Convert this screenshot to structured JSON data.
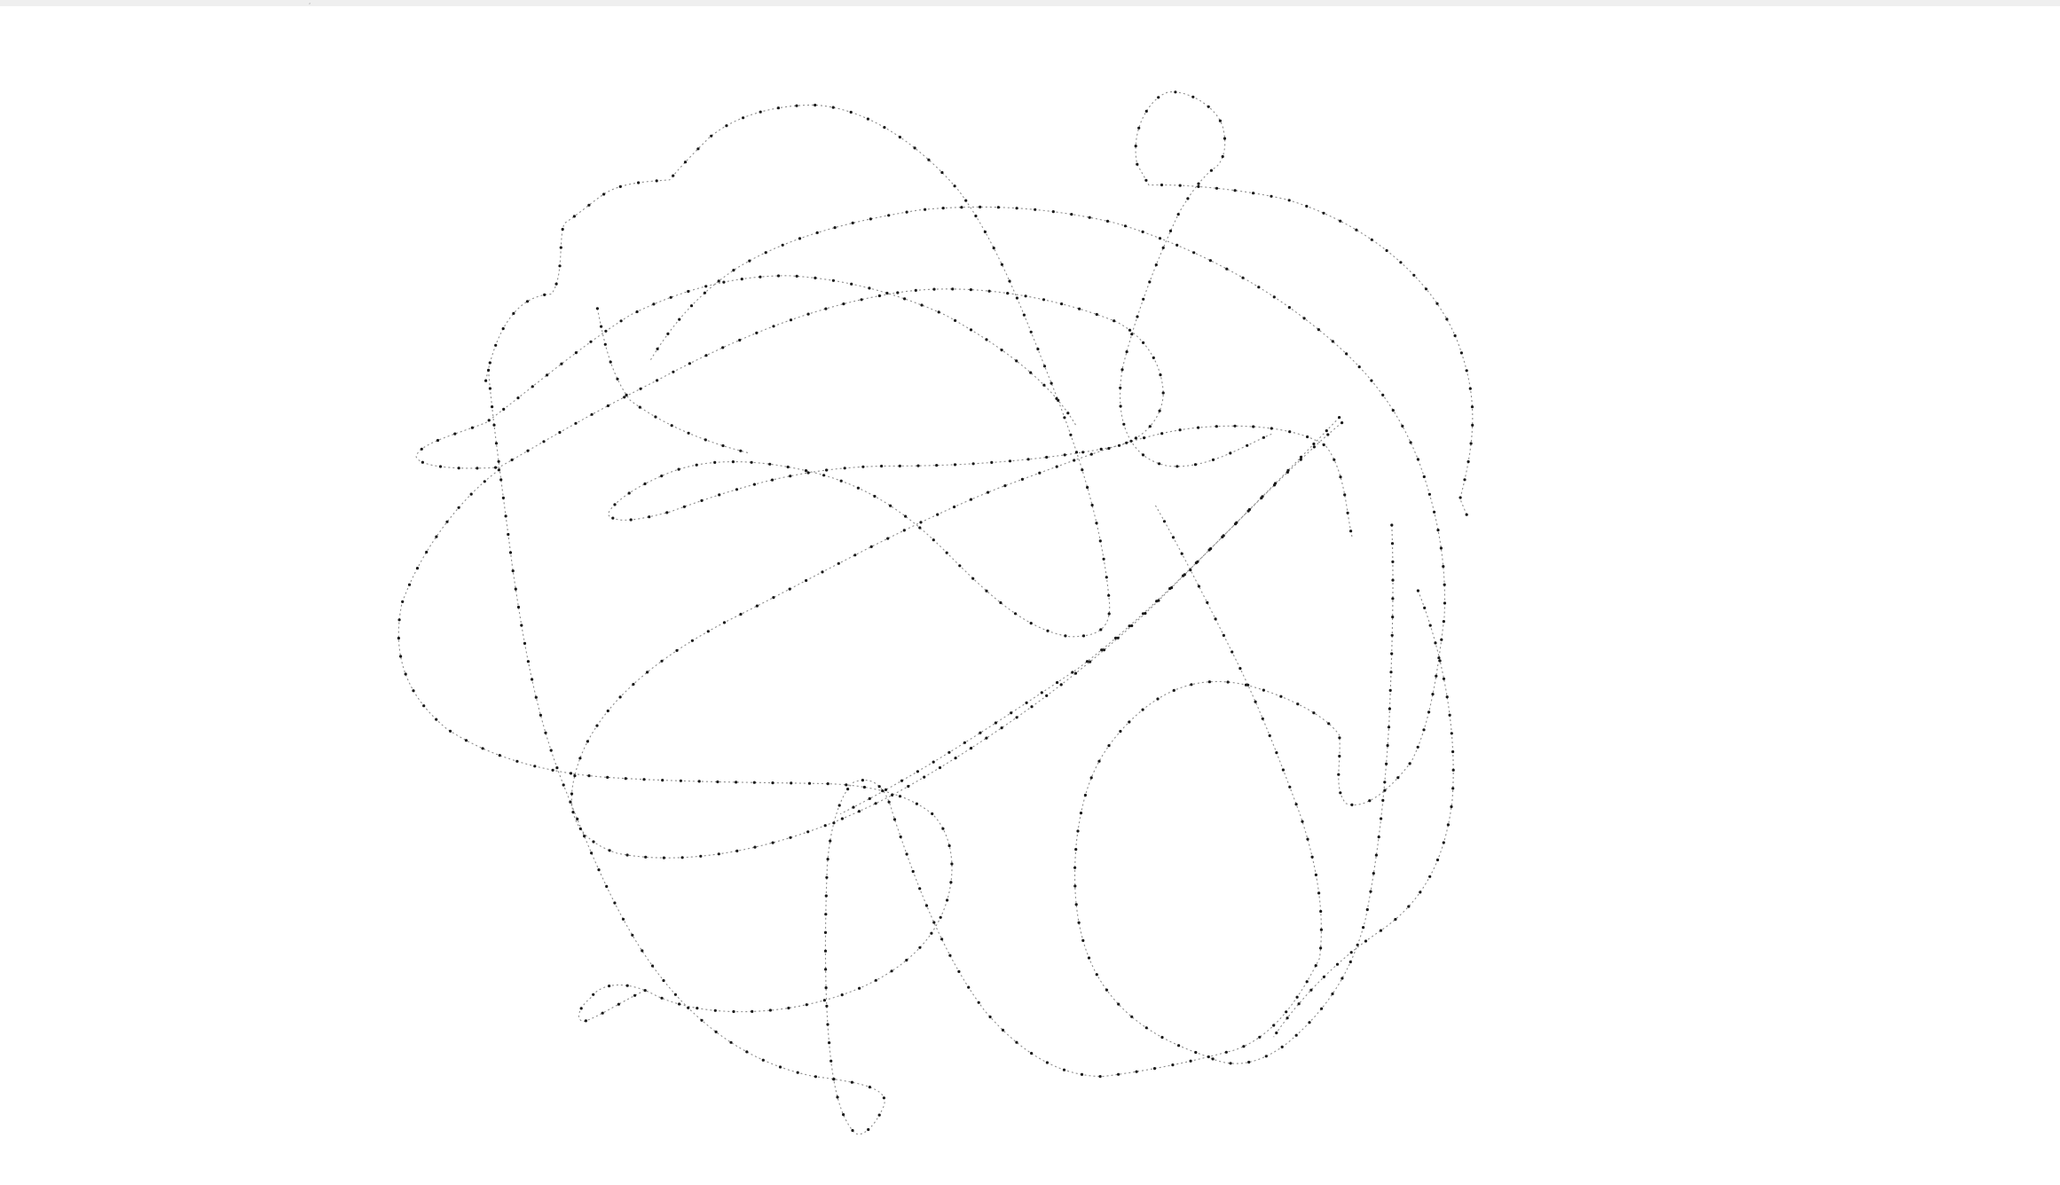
{
  "top_strip_mark": ",",
  "drawing": {
    "kind": "dotted-line-scribble",
    "stroke_color": "#8c8c8c",
    "dot_color": "#1a1a1a",
    "background": "#ffffff"
  }
}
